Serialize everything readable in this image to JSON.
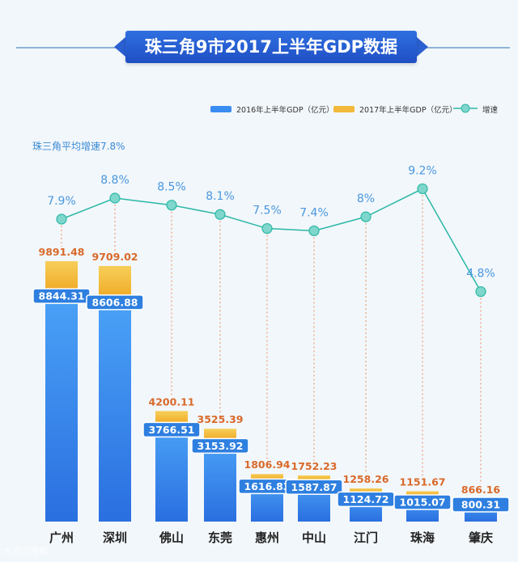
{
  "title": "珠三角9市2017上半年GDP数据",
  "avg_note": "珠三角平均增速7.8%",
  "watermark_text": "大武汉港报",
  "colors": {
    "bar2016": "#3a8df0",
    "bar2017": "#f3b93a",
    "growth_line": "#2bb8a6",
    "label2016_bg": "#2e7fe0",
    "label2017_text": "#d9692a",
    "growth_text": "#4a97df"
  },
  "chart_data": {
    "type": "bar",
    "title": "珠三角9市2017上半年GDP数据",
    "categories": [
      "广州",
      "深圳",
      "佛山",
      "东莞",
      "惠州",
      "中山",
      "江门",
      "珠海",
      "肇庆"
    ],
    "series": [
      {
        "name": "2016年上半年GDP（亿元）",
        "values": [
          8844.31,
          8606.88,
          3766.51,
          3153.92,
          1616.83,
          1587.87,
          1124.72,
          1015.07,
          800.31
        ]
      },
      {
        "name": "2017年上半年GDP（亿元）",
        "values": [
          9891.48,
          9709.02,
          4200.11,
          3525.39,
          1806.94,
          1752.23,
          1258.26,
          1151.67,
          866.16
        ]
      },
      {
        "name": "增速",
        "values": [
          7.9,
          8.8,
          8.5,
          8.1,
          7.5,
          7.4,
          8.0,
          9.2,
          4.8
        ]
      }
    ],
    "labels_2016": [
      "8844.31",
      "8606.88",
      "3766.51",
      "3153.92",
      "1616.83",
      "1587.87",
      "1124.72",
      "1015.07",
      "800.31"
    ],
    "labels_2017": [
      "9891.48",
      "9709.02",
      "4200.11",
      "3525.39",
      "1806.94",
      "1752.23",
      "1258.26",
      "1151.67",
      "866.16"
    ],
    "labels_growth": [
      "7.9%",
      "8.8%",
      "8.5%",
      "8.1%",
      "7.5%",
      "7.4%",
      "8%",
      "9.2%",
      "4.8%"
    ],
    "legend_position": "top-right",
    "grid": false
  }
}
